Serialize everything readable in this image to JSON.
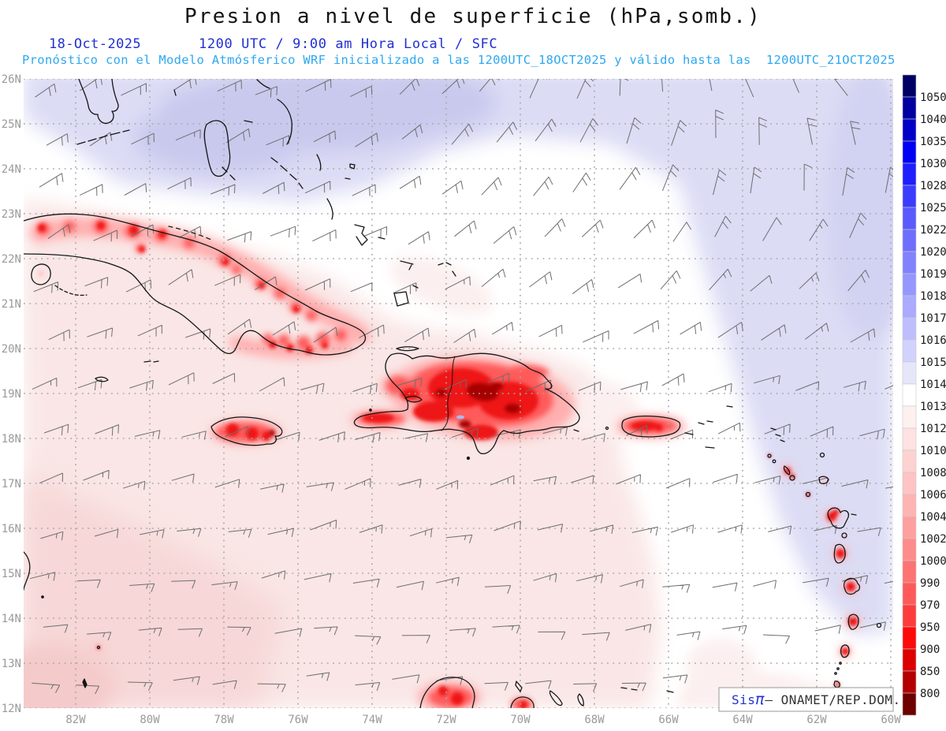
{
  "header": {
    "title": "Presion a nivel de superficie (hPa,somb.)",
    "date": "18-Oct-2025",
    "time": "1200 UTC / 9:00 am Hora Local / SFC",
    "forecast": "Pronóstico con el Modelo Atmósferico WRF inicializado a las 1200UTC_18OCT2025 y válido hasta las  1200UTC_21OCT2025"
  },
  "axes": {
    "lat": [
      "26N",
      "25N",
      "24N",
      "23N",
      "22N",
      "21N",
      "20N",
      "19N",
      "18N",
      "17N",
      "16N",
      "15N",
      "14N",
      "13N",
      "12N"
    ],
    "lon": [
      "82W",
      "80W",
      "78W",
      "76W",
      "74W",
      "72W",
      "70W",
      "68W",
      "66W",
      "64W",
      "62W",
      "60W"
    ]
  },
  "colorbar": {
    "labels": [
      "1050",
      "1040",
      "1035",
      "1030",
      "1028",
      "1025",
      "1022",
      "1020",
      "1019",
      "1018",
      "1017",
      "1016",
      "1015",
      "1014",
      "1013",
      "1012",
      "1010",
      "1008",
      "1006",
      "1004",
      "1002",
      "1000",
      "990",
      "970",
      "950",
      "900",
      "850",
      "800"
    ],
    "colors": [
      "#000064",
      "#0000A0",
      "#0000C8",
      "#0000F5",
      "#1E1EFF",
      "#3C3CFF",
      "#5A5AFF",
      "#6E6EFF",
      "#8282FF",
      "#9696FF",
      "#AAAAFF",
      "#BEBEFF",
      "#D2D2FF",
      "#E6E6FA",
      "#FFFFFF",
      "#FFF0F0",
      "#FFE1E1",
      "#FFD2D2",
      "#FFC3C3",
      "#FFB4B4",
      "#FFA0A0",
      "#FF8C8C",
      "#FF7373",
      "#FF5A5A",
      "#FF3C3C",
      "#FF0A0A",
      "#DC0000",
      "#B40000",
      "#6E0000"
    ]
  },
  "attribution": {
    "sis": "Sis",
    "pi": "π",
    "org": "– ONAMET/REP.DOM."
  },
  "palette": {
    "lavender": "#DCDCF5",
    "lavender_deep": "#C9C9EE",
    "lavender_edge": "#D2D2F2",
    "pink": "#FAE6E6",
    "pink_deep": "#F7D7D7",
    "pink_corner": "#F4CACA",
    "pink_pale": "#FCEFEF",
    "red_halo": "#FFAFAF",
    "red_mid": "#FF5A5A",
    "red_bright": "#EE1212",
    "red_dark": "#A60000",
    "pale_island": "#FFC8C8",
    "lake": "#A9B9F0",
    "coast": "#141414",
    "grid": "#A8A8A8",
    "axis_text": "#9A9A9A",
    "label_text": "#1A1A1A",
    "barb": "#6E6E6E",
    "box_border": "#999999"
  }
}
